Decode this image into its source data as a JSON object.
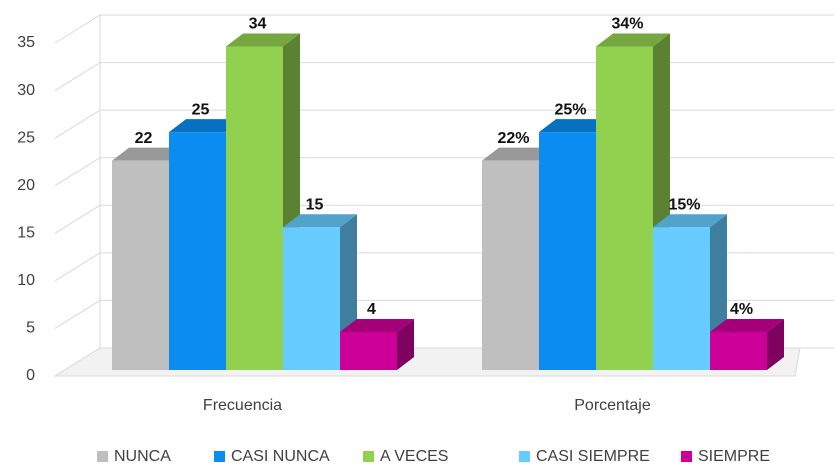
{
  "chart_data": {
    "type": "bar3d",
    "categories": [
      "Frecuencia",
      "Porcentaje"
    ],
    "series": [
      {
        "name": "NUNCA",
        "color": "#bfbfbf",
        "values": [
          22,
          22
        ],
        "value_labels": [
          "22",
          "22%"
        ]
      },
      {
        "name": "CASI NUNCA",
        "color": "#0a8cf0",
        "values": [
          25,
          25
        ],
        "value_labels": [
          "25",
          "25%"
        ]
      },
      {
        "name": "A VECES",
        "color": "#92d050",
        "values": [
          34,
          34
        ],
        "value_labels": [
          "34",
          "34%"
        ]
      },
      {
        "name": "CASI SIEMPRE",
        "color": "#66ccff",
        "values": [
          15,
          15
        ],
        "value_labels": [
          "15",
          "15%"
        ]
      },
      {
        "name": "SIEMPRE",
        "color": "#cc0099",
        "values": [
          4,
          4
        ],
        "value_labels": [
          "4",
          "4%"
        ]
      }
    ],
    "ylim": [
      0,
      35
    ],
    "yticks": [
      0,
      5,
      10,
      15,
      20,
      25,
      30,
      35
    ],
    "grid": true,
    "legend": "bottom"
  }
}
